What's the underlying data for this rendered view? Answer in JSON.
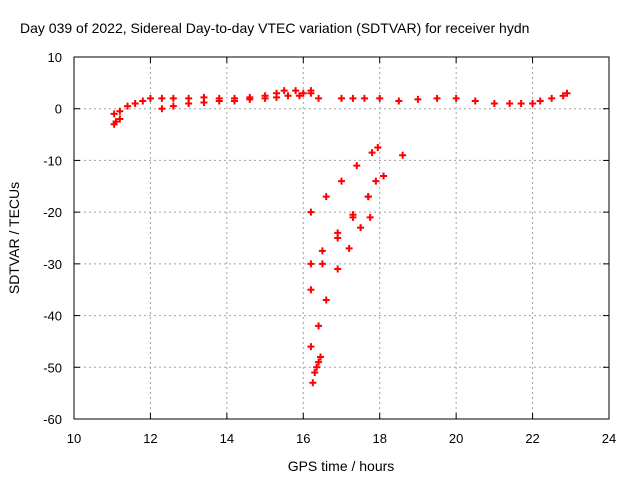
{
  "chart_data": {
    "type": "scatter",
    "title": "Day 039 of 2022, Sidereal Day-to-day VTEC variation (SDTVAR) for receiver hydn",
    "xlabel": "GPS time / hours",
    "ylabel": "SDTVAR / TECUs",
    "xlim": [
      10,
      24
    ],
    "ylim": [
      -60,
      10
    ],
    "xticks": [
      10,
      12,
      14,
      16,
      18,
      20,
      22,
      24
    ],
    "yticks": [
      10,
      0,
      -10,
      -20,
      -30,
      -40,
      -50,
      -60
    ],
    "grid": true,
    "marker": "+",
    "color": "#ff0000",
    "series": [
      {
        "x": [
          11.05,
          11.2,
          11.4,
          11.6,
          11.8,
          12.0,
          12.3,
          12.6,
          13.0,
          13.4,
          13.8,
          14.2,
          14.6,
          15.0,
          15.3,
          15.5,
          15.8,
          16.0,
          16.2
        ],
        "y": [
          -1,
          -0.5,
          0.5,
          1,
          1.5,
          2,
          2,
          2,
          2,
          2.2,
          2,
          2,
          2.2,
          2.5,
          3,
          3.5,
          3.5,
          3,
          3
        ]
      },
      {
        "x": [
          11.05,
          11.1,
          11.2
        ],
        "y": [
          -3,
          -2.5,
          -2
        ]
      },
      {
        "x": [
          12.3,
          12.6,
          13.0,
          13.4,
          13.8,
          14.2,
          14.6,
          15.0,
          15.3,
          15.6,
          15.9
        ],
        "y": [
          0,
          0.5,
          1,
          1.2,
          1.5,
          1.5,
          1.8,
          2,
          2.2,
          2.5,
          2.5
        ]
      },
      {
        "x": [
          16.2,
          16.4
        ],
        "y": [
          3.5,
          2
        ]
      },
      {
        "x": [
          17.0,
          17.3,
          17.6,
          18.0,
          18.5,
          19.0,
          19.5,
          20.0,
          20.5,
          21.0,
          21.4,
          21.7
        ],
        "y": [
          2,
          2,
          2,
          2,
          1.5,
          1.8,
          2,
          2,
          1.5,
          1,
          1,
          1
        ]
      },
      {
        "x": [
          22.0,
          22.2,
          22.5,
          22.8,
          22.9
        ],
        "y": [
          1,
          1.5,
          2,
          2.5,
          3
        ]
      },
      {
        "x": [
          16.2,
          16.6,
          17.0,
          17.4,
          17.8,
          17.95
        ],
        "y": [
          -20,
          -17,
          -14,
          -11,
          -8.5,
          -7.5
        ]
      },
      {
        "x": [
          16.2,
          16.5,
          16.9,
          17.3,
          17.7,
          18.1,
          18.6
        ],
        "y": [
          -30,
          -27.5,
          -24,
          -20.5,
          -17,
          -13,
          -9
        ]
      },
      {
        "x": [
          16.2,
          16.5,
          16.9,
          17.3,
          17.7,
          17.9
        ],
        "y": [
          -35,
          -30,
          -25,
          -21,
          -17,
          -14
        ]
      },
      {
        "x": [
          16.2,
          16.4,
          16.6,
          16.9,
          17.2,
          17.5,
          17.75
        ],
        "y": [
          -46,
          -42,
          -37,
          -31,
          -27,
          -23,
          -21
        ]
      },
      {
        "x": [
          16.25,
          16.3,
          16.35,
          16.4,
          16.45
        ],
        "y": [
          -53,
          -51,
          -50,
          -49,
          -48
        ]
      }
    ]
  }
}
